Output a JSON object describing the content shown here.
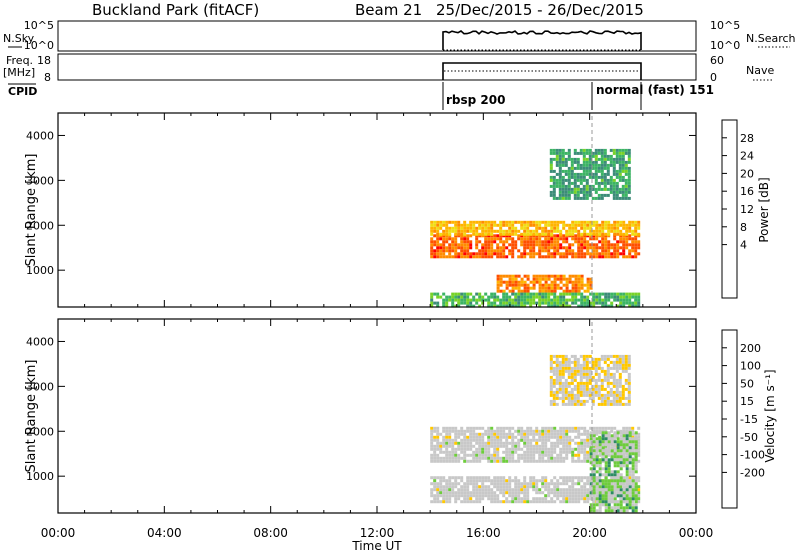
{
  "header": {
    "station": "Buckland Park (fitACF)",
    "beam": "Beam 21",
    "date_range": "25/Dec/2015 - 26/Dec/2015"
  },
  "strips": {
    "nsky_label": "N.Sky",
    "nsky_ticks": [
      "10^5",
      "10^0"
    ],
    "nsky_right_ticks": [
      "10^5",
      "10^0"
    ],
    "nsearch_label": "N.Search",
    "freq_label": "Freq.",
    "freq_unit": "[MHz]",
    "freq_ticks": [
      "18",
      "8"
    ],
    "nave_label": "Nave",
    "nave_ticks": [
      "60",
      "0"
    ],
    "cpid_label": "CPID",
    "cpid_modes": [
      "rbsp 200",
      "normal (fast) 151"
    ]
  },
  "panels": {
    "y_label": "Slant Range [km]",
    "y_ticks": [
      "4000",
      "3000",
      "2000",
      "1000"
    ],
    "x_label": "Time UT",
    "x_ticks": [
      "00:00",
      "04:00",
      "08:00",
      "12:00",
      "16:00",
      "20:00",
      "00:00"
    ],
    "power_label": "Power [dB]",
    "power_ticks": [
      "28",
      "24",
      "20",
      "16",
      "12",
      "8",
      "4"
    ],
    "velocity_label": "Velocity [m s⁻¹]",
    "velocity_ticks": [
      "200",
      "100",
      "50",
      "15",
      "-15",
      "-50",
      "-100",
      "-200"
    ]
  },
  "colors": {
    "power_scale": [
      "#0000ff",
      "#1e5ab4",
      "#3c8c78",
      "#3cb464",
      "#78d228",
      "#f0dc14",
      "#ffb400",
      "#ff8c00",
      "#ff5000",
      "#ff0000"
    ],
    "velocity_scale": [
      "#0000ff",
      "#2346c8",
      "#2d8c64",
      "#6ecd3c",
      "#c8c8c8",
      "#c8c8c8",
      "#ffc800",
      "#ff9600",
      "#ff5a00",
      "#ff0000"
    ]
  },
  "chart_data": [
    {
      "type": "heatmap",
      "title": "Power",
      "xlabel": "Time UT",
      "ylabel": "Slant Range [km]",
      "xlim_hours": [
        0,
        24
      ],
      "ylim_km": [
        180,
        4500
      ],
      "colorbar_label": "Power [dB]",
      "colorbar_range": [
        0,
        32
      ],
      "data_coverage_hours": [
        14.0,
        21.9
      ],
      "echo_bands": [
        {
          "t_start": 14.0,
          "t_end": 21.8,
          "range_km": [
            1300,
            1800
          ],
          "power_db": 26
        },
        {
          "t_start": 14.0,
          "t_end": 21.8,
          "range_km": [
            1800,
            2100
          ],
          "power_db": 20
        },
        {
          "t_start": 16.5,
          "t_end": 20.0,
          "range_km": [
            500,
            900
          ],
          "power_db": 24
        },
        {
          "t_start": 14.0,
          "t_end": 21.8,
          "range_km": [
            200,
            500
          ],
          "power_db": 12
        },
        {
          "t_start": 18.5,
          "t_end": 21.5,
          "range_km": [
            2600,
            3700
          ],
          "power_db": 10
        }
      ]
    },
    {
      "type": "heatmap",
      "title": "Velocity",
      "xlabel": "Time UT",
      "ylabel": "Slant Range [km]",
      "xlim_hours": [
        0,
        24
      ],
      "ylim_km": [
        180,
        4500
      ],
      "colorbar_label": "Velocity [m s⁻¹]",
      "colorbar_range": [
        -250,
        250
      ],
      "data_coverage_hours": [
        14.0,
        21.9
      ],
      "echo_bands": [
        {
          "t_start": 14.0,
          "t_end": 21.8,
          "range_km": [
            1300,
            2100
          ],
          "velocity_ms": 0
        },
        {
          "t_start": 14.0,
          "t_end": 21.8,
          "range_km": [
            400,
            1000
          ],
          "velocity_ms": 0
        },
        {
          "t_start": 18.5,
          "t_end": 21.5,
          "range_km": [
            2600,
            3700
          ],
          "velocity_ms": 40
        },
        {
          "t_start": 20.0,
          "t_end": 21.8,
          "range_km": [
            200,
            2000
          ],
          "velocity_ms": -60
        }
      ]
    }
  ]
}
